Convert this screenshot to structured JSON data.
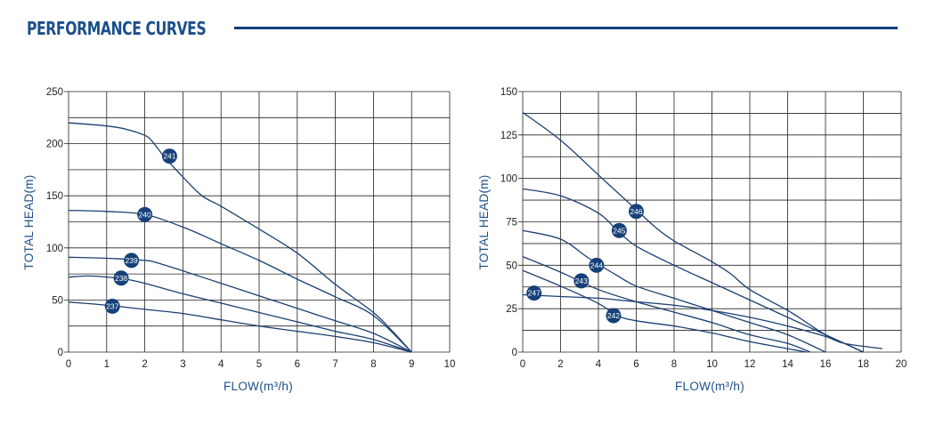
{
  "header": {
    "title": "PERFORMANCE CURVES",
    "accent_color": "#1b4f8a"
  },
  "chart_data": [
    {
      "type": "line",
      "xlabel": "FLOW(m³/h)",
      "ylabel": "TOTAL HEAD(m)",
      "xlim": [
        0,
        10
      ],
      "ylim": [
        0,
        250
      ],
      "xticks": [
        0,
        1,
        2,
        3,
        4,
        5,
        6,
        7,
        8,
        9,
        10
      ],
      "yticks": [
        0,
        50,
        100,
        150,
        200,
        250
      ],
      "grid": true,
      "series": [
        {
          "name": "241",
          "label_at": [
            2.65,
            188
          ],
          "x": [
            0,
            1,
            1.5,
            2,
            2.2,
            2.5,
            3,
            3.5,
            4,
            5,
            6,
            7,
            8,
            8.5,
            9
          ],
          "y": [
            220,
            217,
            214,
            208,
            202,
            188,
            168,
            150,
            140,
            118,
            95,
            65,
            38,
            20,
            0
          ]
        },
        {
          "name": "240",
          "label_at": [
            2.0,
            132
          ],
          "x": [
            0,
            1,
            2,
            3,
            4,
            5,
            6,
            7,
            8,
            9
          ],
          "y": [
            136,
            135,
            132,
            120,
            104,
            88,
            70,
            53,
            35,
            0
          ]
        },
        {
          "name": "239",
          "label_at": [
            1.65,
            88
          ],
          "x": [
            0,
            1,
            2,
            2.3,
            3,
            4,
            5,
            6,
            7,
            8,
            9
          ],
          "y": [
            91,
            90,
            88,
            86,
            78,
            66,
            54,
            42,
            30,
            18,
            0
          ]
        },
        {
          "name": "238",
          "label_at": [
            1.38,
            71
          ],
          "x": [
            0,
            0.5,
            1,
            1.5,
            2,
            3,
            4,
            5,
            6,
            7,
            8,
            9
          ],
          "y": [
            72,
            73,
            72,
            70,
            66,
            56,
            47,
            38,
            29,
            20,
            12,
            0
          ]
        },
        {
          "name": "237",
          "label_at": [
            1.15,
            44
          ],
          "x": [
            0,
            1,
            2,
            3,
            4,
            5,
            6,
            7,
            8,
            9
          ],
          "y": [
            48,
            45,
            41,
            37,
            31,
            25,
            20,
            15,
            9,
            0
          ]
        }
      ]
    },
    {
      "type": "line",
      "xlabel": "FLOW(m³/h)",
      "ylabel": "TOTAL HEAD(m)",
      "xlim": [
        0,
        20
      ],
      "ylim": [
        0,
        150
      ],
      "xticks": [
        0,
        2,
        4,
        6,
        8,
        10,
        12,
        14,
        16,
        18,
        20
      ],
      "yticks": [
        0,
        25,
        50,
        75,
        100,
        125,
        150
      ],
      "grid": true,
      "series": [
        {
          "name": "246",
          "label_at": [
            6.0,
            81
          ],
          "x": [
            0,
            2,
            4,
            6,
            7,
            8,
            10,
            11,
            12,
            14,
            15,
            16,
            17,
            18
          ],
          "y": [
            138,
            122,
            102,
            82,
            72,
            64,
            52,
            45,
            36,
            24,
            17,
            10,
            5,
            0
          ]
        },
        {
          "name": "245",
          "label_at": [
            5.1,
            70
          ],
          "x": [
            0,
            2,
            4,
            5,
            6,
            8,
            10,
            12,
            14,
            16,
            18
          ],
          "y": [
            94,
            90,
            80,
            70,
            61,
            50,
            40,
            30,
            20,
            10,
            0
          ]
        },
        {
          "name": "244",
          "label_at": [
            3.9,
            50
          ],
          "x": [
            0,
            2,
            3.5,
            5,
            6,
            8,
            10,
            12,
            14,
            16
          ],
          "y": [
            70,
            65,
            54,
            44,
            38,
            31,
            24,
            17,
            10,
            0
          ]
        },
        {
          "name": "243",
          "label_at": [
            3.1,
            41
          ],
          "x": [
            0,
            2,
            4,
            6,
            8,
            10,
            12,
            14,
            15.2
          ],
          "y": [
            55,
            46,
            36,
            29,
            23,
            17,
            10,
            5,
            0
          ]
        },
        {
          "name": "242",
          "label_at": [
            4.8,
            21
          ],
          "x": [
            0,
            2,
            4,
            5,
            6,
            8,
            10,
            12,
            14,
            15
          ],
          "y": [
            47,
            38,
            28,
            21,
            18,
            15,
            11,
            6,
            2,
            0
          ]
        },
        {
          "name": "247",
          "label_at": [
            0.6,
            34
          ],
          "x": [
            0,
            2,
            4,
            6,
            8,
            10,
            12,
            14,
            16,
            17,
            19
          ],
          "y": [
            33,
            32,
            31,
            29,
            27,
            24,
            20,
            15,
            9,
            5,
            2
          ]
        }
      ]
    }
  ]
}
